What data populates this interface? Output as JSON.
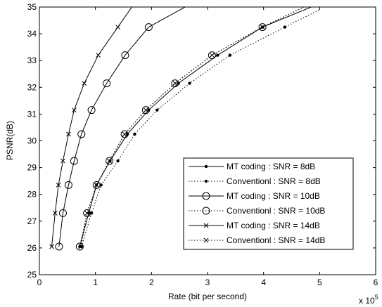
{
  "chart_data": {
    "type": "line",
    "xlabel": "Rate (bit per second)",
    "ylabel": "PSNR(dB)",
    "xlim": [
      0,
      6
    ],
    "ylim": [
      25,
      35
    ],
    "x_ticks": [
      "0",
      "1",
      "2",
      "3",
      "4",
      "5",
      "6"
    ],
    "y_ticks": [
      "25",
      "26",
      "27",
      "28",
      "29",
      "30",
      "31",
      "32",
      "33",
      "34",
      "35"
    ],
    "x_multiplier": "x 10",
    "x_multiplier_exponent": "5",
    "grid": false,
    "legend_position": "lower-right",
    "series": [
      {
        "name": "MT coding : SNR = 8dB",
        "line": "solid",
        "marker": "dot",
        "x": [
          0.72,
          0.88,
          1.02,
          1.26,
          1.57,
          1.95,
          2.48,
          3.18,
          3.98,
          4.85
        ],
        "y": [
          26.05,
          27.3,
          28.35,
          29.25,
          30.25,
          31.15,
          32.15,
          33.2,
          34.25,
          35.0
        ]
      },
      {
        "name": "Conventionl : SNR = 8dB",
        "line": "dotted",
        "marker": "dot",
        "x": [
          0.75,
          0.93,
          1.1,
          1.4,
          1.7,
          2.1,
          2.68,
          3.4,
          4.38,
          5.0
        ],
        "y": [
          26.05,
          27.3,
          28.35,
          29.25,
          30.25,
          31.15,
          32.15,
          33.2,
          34.25,
          34.9
        ]
      },
      {
        "name": "MT coding : SNR = 10dB",
        "line": "solid",
        "marker": "circle",
        "x": [
          0.35,
          0.42,
          0.52,
          0.62,
          0.75,
          0.93,
          1.2,
          1.53,
          1.95,
          2.6
        ],
        "y": [
          26.05,
          27.3,
          28.35,
          29.25,
          30.25,
          31.15,
          32.15,
          33.2,
          34.25,
          35.0
        ]
      },
      {
        "name": "Conventionl : SNR = 10dB",
        "line": "dotted",
        "marker": "circle",
        "x": [
          0.72,
          0.85,
          1.02,
          1.25,
          1.52,
          1.9,
          2.42,
          3.08,
          3.98,
          4.72
        ],
        "y": [
          26.05,
          27.3,
          28.35,
          29.25,
          30.25,
          31.15,
          32.15,
          33.2,
          34.25,
          35.0
        ]
      },
      {
        "name": "MT coding : SNR = 14dB",
        "line": "solid",
        "marker": "x",
        "x": [
          0.22,
          0.28,
          0.34,
          0.42,
          0.52,
          0.62,
          0.8,
          1.05,
          1.4,
          1.65
        ],
        "y": [
          26.05,
          27.3,
          28.35,
          29.25,
          30.25,
          31.15,
          32.15,
          33.2,
          34.25,
          35.0
        ]
      },
      {
        "name": "Conventionl : SNR = 14dB",
        "line": "dotted",
        "marker": "x",
        "x": [
          0.74,
          0.85,
          1.02,
          1.25,
          1.52,
          1.9,
          2.42,
          3.08,
          3.98,
          4.72
        ],
        "y": [
          26.05,
          27.3,
          28.35,
          29.25,
          30.25,
          31.15,
          32.15,
          33.2,
          34.25,
          35.0
        ]
      }
    ]
  }
}
